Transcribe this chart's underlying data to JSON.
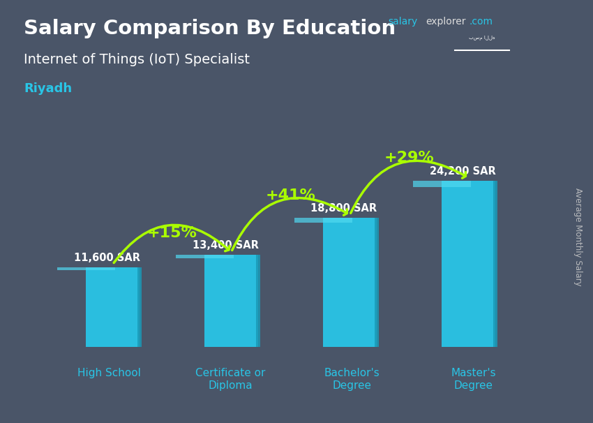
{
  "title_bold": "Salary Comparison By Education",
  "subtitle": "Internet of Things (IoT) Specialist",
  "location": "Riyadh",
  "ylabel": "Average Monthly Salary",
  "categories": [
    "High School",
    "Certificate or\nDiploma",
    "Bachelor's\nDegree",
    "Master's\nDegree"
  ],
  "values": [
    11600,
    13400,
    18800,
    24200
  ],
  "value_labels": [
    "11,600 SAR",
    "13,400 SAR",
    "18,800 SAR",
    "24,200 SAR"
  ],
  "pct_labels": [
    "+15%",
    "+41%",
    "+29%"
  ],
  "bar_color": "#29c5e6",
  "pct_color": "#aaff00",
  "title_color": "#ffffff",
  "subtitle_color": "#ffffff",
  "location_color": "#29c5e6",
  "value_label_color": "#ffffff",
  "background_color": "#4a5568",
  "site_salary_color": "#29c5e6",
  "site_explorer_color": "#dddddd",
  "site_com_color": "#29c5e6",
  "ylabel_color": "#cccccc",
  "xtick_color": "#29c5e6",
  "ylim": [
    0,
    32000
  ],
  "flag_bg": "#3a9e3a",
  "bar_width": 0.45,
  "xlim_left": -0.55,
  "xlim_right": 3.55
}
